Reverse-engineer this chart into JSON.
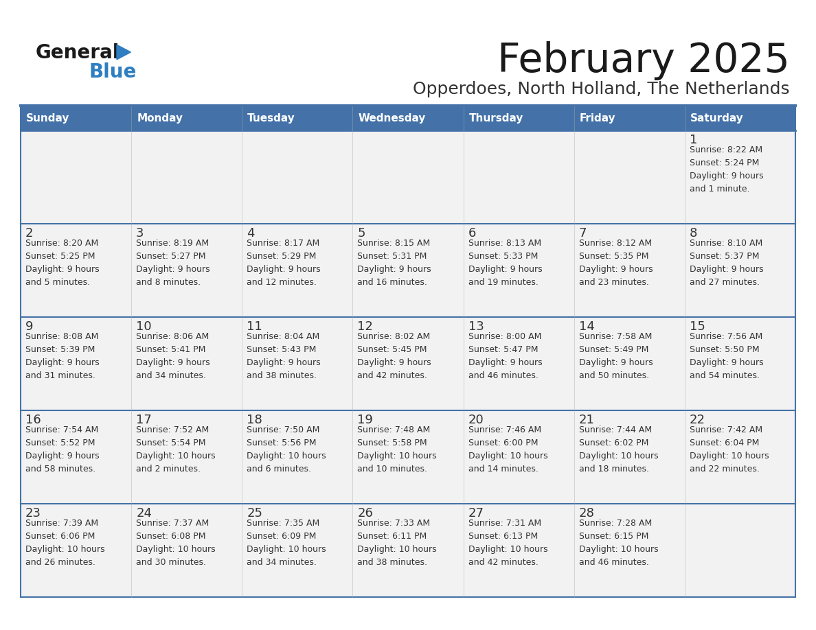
{
  "title": "February 2025",
  "subtitle": "Opperdoes, North Holland, The Netherlands",
  "days_of_week": [
    "Sunday",
    "Monday",
    "Tuesday",
    "Wednesday",
    "Thursday",
    "Friday",
    "Saturday"
  ],
  "header_bg": "#4472A8",
  "header_text": "#FFFFFF",
  "row_bg_light": "#F2F2F2",
  "cell_border": "#4472A8",
  "cell_border_inner": "#4472A8",
  "day_number_color": "#333333",
  "info_text_color": "#333333",
  "title_color": "#1a1a1a",
  "subtitle_color": "#333333",
  "logo_general_color": "#1a1a1a",
  "logo_blue_color": "#2E7EC1",
  "weeks": [
    {
      "days": [
        {
          "date": null,
          "info": null
        },
        {
          "date": null,
          "info": null
        },
        {
          "date": null,
          "info": null
        },
        {
          "date": null,
          "info": null
        },
        {
          "date": null,
          "info": null
        },
        {
          "date": null,
          "info": null
        },
        {
          "date": 1,
          "info": "Sunrise: 8:22 AM\nSunset: 5:24 PM\nDaylight: 9 hours\nand 1 minute."
        }
      ]
    },
    {
      "days": [
        {
          "date": 2,
          "info": "Sunrise: 8:20 AM\nSunset: 5:25 PM\nDaylight: 9 hours\nand 5 minutes."
        },
        {
          "date": 3,
          "info": "Sunrise: 8:19 AM\nSunset: 5:27 PM\nDaylight: 9 hours\nand 8 minutes."
        },
        {
          "date": 4,
          "info": "Sunrise: 8:17 AM\nSunset: 5:29 PM\nDaylight: 9 hours\nand 12 minutes."
        },
        {
          "date": 5,
          "info": "Sunrise: 8:15 AM\nSunset: 5:31 PM\nDaylight: 9 hours\nand 16 minutes."
        },
        {
          "date": 6,
          "info": "Sunrise: 8:13 AM\nSunset: 5:33 PM\nDaylight: 9 hours\nand 19 minutes."
        },
        {
          "date": 7,
          "info": "Sunrise: 8:12 AM\nSunset: 5:35 PM\nDaylight: 9 hours\nand 23 minutes."
        },
        {
          "date": 8,
          "info": "Sunrise: 8:10 AM\nSunset: 5:37 PM\nDaylight: 9 hours\nand 27 minutes."
        }
      ]
    },
    {
      "days": [
        {
          "date": 9,
          "info": "Sunrise: 8:08 AM\nSunset: 5:39 PM\nDaylight: 9 hours\nand 31 minutes."
        },
        {
          "date": 10,
          "info": "Sunrise: 8:06 AM\nSunset: 5:41 PM\nDaylight: 9 hours\nand 34 minutes."
        },
        {
          "date": 11,
          "info": "Sunrise: 8:04 AM\nSunset: 5:43 PM\nDaylight: 9 hours\nand 38 minutes."
        },
        {
          "date": 12,
          "info": "Sunrise: 8:02 AM\nSunset: 5:45 PM\nDaylight: 9 hours\nand 42 minutes."
        },
        {
          "date": 13,
          "info": "Sunrise: 8:00 AM\nSunset: 5:47 PM\nDaylight: 9 hours\nand 46 minutes."
        },
        {
          "date": 14,
          "info": "Sunrise: 7:58 AM\nSunset: 5:49 PM\nDaylight: 9 hours\nand 50 minutes."
        },
        {
          "date": 15,
          "info": "Sunrise: 7:56 AM\nSunset: 5:50 PM\nDaylight: 9 hours\nand 54 minutes."
        }
      ]
    },
    {
      "days": [
        {
          "date": 16,
          "info": "Sunrise: 7:54 AM\nSunset: 5:52 PM\nDaylight: 9 hours\nand 58 minutes."
        },
        {
          "date": 17,
          "info": "Sunrise: 7:52 AM\nSunset: 5:54 PM\nDaylight: 10 hours\nand 2 minutes."
        },
        {
          "date": 18,
          "info": "Sunrise: 7:50 AM\nSunset: 5:56 PM\nDaylight: 10 hours\nand 6 minutes."
        },
        {
          "date": 19,
          "info": "Sunrise: 7:48 AM\nSunset: 5:58 PM\nDaylight: 10 hours\nand 10 minutes."
        },
        {
          "date": 20,
          "info": "Sunrise: 7:46 AM\nSunset: 6:00 PM\nDaylight: 10 hours\nand 14 minutes."
        },
        {
          "date": 21,
          "info": "Sunrise: 7:44 AM\nSunset: 6:02 PM\nDaylight: 10 hours\nand 18 minutes."
        },
        {
          "date": 22,
          "info": "Sunrise: 7:42 AM\nSunset: 6:04 PM\nDaylight: 10 hours\nand 22 minutes."
        }
      ]
    },
    {
      "days": [
        {
          "date": 23,
          "info": "Sunrise: 7:39 AM\nSunset: 6:06 PM\nDaylight: 10 hours\nand 26 minutes."
        },
        {
          "date": 24,
          "info": "Sunrise: 7:37 AM\nSunset: 6:08 PM\nDaylight: 10 hours\nand 30 minutes."
        },
        {
          "date": 25,
          "info": "Sunrise: 7:35 AM\nSunset: 6:09 PM\nDaylight: 10 hours\nand 34 minutes."
        },
        {
          "date": 26,
          "info": "Sunrise: 7:33 AM\nSunset: 6:11 PM\nDaylight: 10 hours\nand 38 minutes."
        },
        {
          "date": 27,
          "info": "Sunrise: 7:31 AM\nSunset: 6:13 PM\nDaylight: 10 hours\nand 42 minutes."
        },
        {
          "date": 28,
          "info": "Sunrise: 7:28 AM\nSunset: 6:15 PM\nDaylight: 10 hours\nand 46 minutes."
        },
        {
          "date": null,
          "info": null
        }
      ]
    }
  ]
}
